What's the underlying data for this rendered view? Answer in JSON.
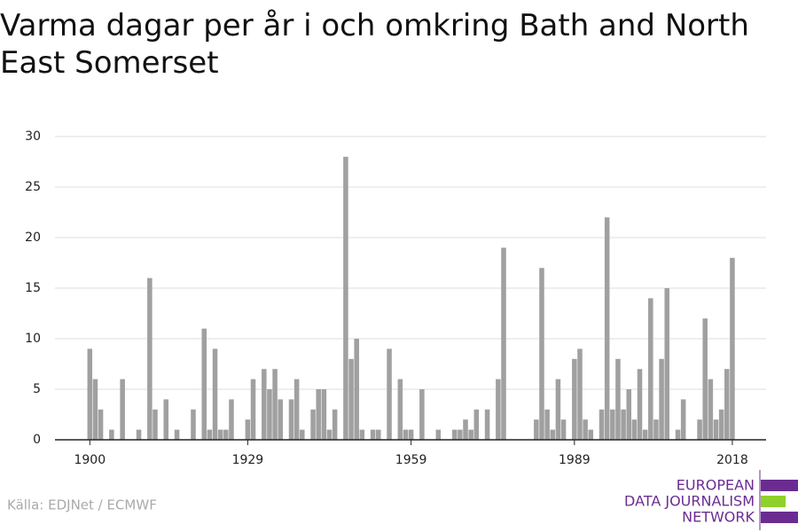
{
  "chart_data": {
    "type": "bar",
    "title": "Varma dagar per år i och omkring Bath and North East Somerset",
    "x": [
      1900,
      1901,
      1902,
      1903,
      1904,
      1905,
      1906,
      1907,
      1908,
      1909,
      1910,
      1911,
      1912,
      1913,
      1914,
      1915,
      1916,
      1917,
      1918,
      1919,
      1920,
      1921,
      1922,
      1923,
      1924,
      1925,
      1926,
      1927,
      1928,
      1929,
      1930,
      1931,
      1932,
      1933,
      1934,
      1935,
      1936,
      1937,
      1938,
      1939,
      1940,
      1941,
      1942,
      1943,
      1944,
      1945,
      1946,
      1947,
      1948,
      1949,
      1950,
      1951,
      1952,
      1953,
      1954,
      1955,
      1956,
      1957,
      1958,
      1959,
      1960,
      1961,
      1962,
      1963,
      1964,
      1965,
      1966,
      1967,
      1968,
      1969,
      1970,
      1971,
      1972,
      1973,
      1974,
      1975,
      1976,
      1977,
      1978,
      1979,
      1980,
      1981,
      1982,
      1983,
      1984,
      1985,
      1986,
      1987,
      1988,
      1989,
      1990,
      1991,
      1992,
      1993,
      1994,
      1995,
      1996,
      1997,
      1998,
      1999,
      2000,
      2001,
      2002,
      2003,
      2004,
      2005,
      2006,
      2007,
      2008,
      2009,
      2010,
      2011,
      2012,
      2013,
      2014,
      2015,
      2016,
      2017,
      2018
    ],
    "values": [
      9,
      6,
      3,
      0,
      1,
      0,
      6,
      0,
      0,
      1,
      0,
      16,
      3,
      0,
      4,
      0,
      1,
      0,
      0,
      3,
      0,
      11,
      1,
      9,
      1,
      1,
      4,
      0,
      0,
      2,
      6,
      0,
      7,
      5,
      7,
      4,
      0,
      4,
      6,
      1,
      0,
      3,
      5,
      5,
      1,
      3,
      0,
      28,
      8,
      10,
      1,
      0,
      1,
      1,
      0,
      9,
      0,
      6,
      1,
      1,
      0,
      5,
      0,
      0,
      1,
      0,
      0,
      1,
      1,
      2,
      1,
      3,
      0,
      3,
      0,
      6,
      19,
      0,
      0,
      0,
      0,
      0,
      2,
      17,
      3,
      1,
      6,
      2,
      0,
      8,
      9,
      2,
      1,
      0,
      3,
      22,
      3,
      8,
      3,
      5,
      2,
      7,
      1,
      14,
      2,
      8,
      15,
      0,
      1,
      4,
      0,
      0,
      2,
      12,
      6,
      2,
      3,
      7,
      18
    ],
    "color": "#a0a0a0",
    "xlim": [
      1893.6,
      2024.2
    ],
    "xticks": [
      1900,
      1929,
      1959,
      1989,
      2018
    ],
    "ylim": [
      0,
      30
    ],
    "yticks": [
      0,
      5,
      10,
      15,
      20,
      25,
      30
    ],
    "grid": true,
    "source": "Källa: EDJNet / ECMWF",
    "logo": [
      "EUROPEAN",
      "DATA JOURNALISM",
      "NETWORK"
    ]
  }
}
